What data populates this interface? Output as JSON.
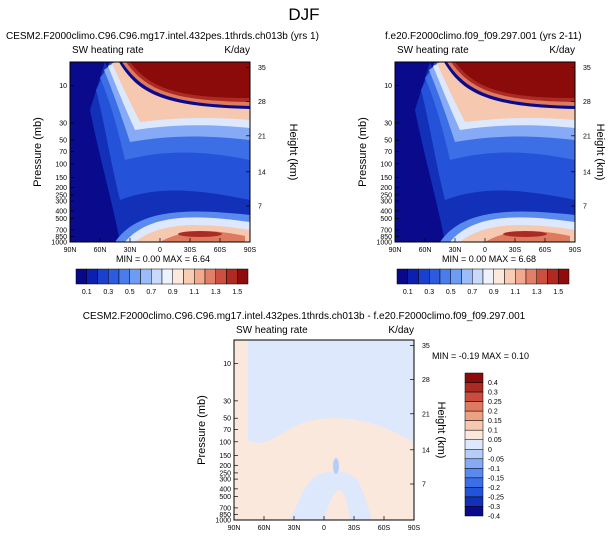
{
  "page": {
    "title": "DJF"
  },
  "colors": {
    "cbar1": [
      "#08088a",
      "#0b1fb0",
      "#1940cf",
      "#2d5be0",
      "#4b7cec",
      "#6f9cf3",
      "#9bbcf8",
      "#c8d9fb",
      "#eef2fd",
      "#fde9dc",
      "#f9cdb3",
      "#f2a98d",
      "#e27f68",
      "#cc4f3f",
      "#b02a22",
      "#8f0c0c"
    ],
    "cbar2": [
      "#0a0a8c",
      "#1230b8",
      "#2452d8",
      "#3c6ee6",
      "#5b8aef",
      "#86aaf5",
      "#b4cdf9",
      "#dde8fc",
      "#fbe8dc",
      "#f6c8b0",
      "#eda184",
      "#de7a60",
      "#c94c3d",
      "#ab2a23",
      "#8b0a0a"
    ]
  },
  "chart_data": [
    {
      "type": "heatmap",
      "name": "panel-1",
      "title": "CESM2.F2000climo.C96.C96.mg17.intel.432pes.1thrds.ch013b (yrs 1)",
      "left_label": "SW heating rate",
      "right_label": "K/day",
      "ylabel": "Pressure (mb)",
      "ylabel_right": "Height (km)",
      "x_ticks": [
        "90N",
        "60N",
        "30N",
        "0",
        "30S",
        "60S",
        "90S"
      ],
      "y_ticks": [
        "10",
        "30",
        "50",
        "70",
        "100",
        "150",
        "200",
        "250",
        "300",
        "400",
        "500",
        "700",
        "850",
        "1000"
      ],
      "y_ticks_right": [
        "35",
        "28",
        "21",
        "14",
        "7"
      ],
      "stats": "MIN =  0.00  MAX =  6.64",
      "colorbar_labels": [
        "0.1",
        "0.3",
        "0.5",
        "0.7",
        "0.9",
        "1.1",
        "1.3",
        "1.5"
      ]
    },
    {
      "type": "heatmap",
      "name": "panel-2",
      "title": "f.e20.F2000climo.f09_f09.297.001 (yrs 2-11)",
      "left_label": "SW heating rate",
      "right_label": "K/day",
      "ylabel": "Pressure (mb)",
      "ylabel_right": "Height (km)",
      "x_ticks": [
        "90N",
        "60N",
        "30N",
        "0",
        "30S",
        "60S",
        "90S"
      ],
      "y_ticks": [
        "10",
        "30",
        "50",
        "70",
        "100",
        "150",
        "200",
        "250",
        "300",
        "400",
        "500",
        "700",
        "850",
        "1000"
      ],
      "y_ticks_right": [
        "35",
        "28",
        "21",
        "14",
        "7"
      ],
      "stats": "MIN =  0.00  MAX =  6.68",
      "colorbar_labels": [
        "0.1",
        "0.3",
        "0.5",
        "0.7",
        "0.9",
        "1.1",
        "1.3",
        "1.5"
      ]
    },
    {
      "type": "heatmap",
      "name": "panel-diff",
      "title": "CESM2.F2000climo.C96.C96.mg17.intel.432pes.1thrds.ch013b - f.e20.F2000climo.f09_f09.297.001",
      "left_label": "SW heating rate",
      "right_label": "K/day",
      "ylabel": "Pressure (mb)",
      "ylabel_right": "Height (km)",
      "x_ticks": [
        "90N",
        "60N",
        "30N",
        "0",
        "30S",
        "60S",
        "90S"
      ],
      "y_ticks": [
        "10",
        "30",
        "50",
        "70",
        "100",
        "150",
        "200",
        "250",
        "300",
        "400",
        "500",
        "700",
        "850",
        "1000"
      ],
      "y_ticks_right": [
        "35",
        "28",
        "21",
        "14",
        "7"
      ],
      "stats": "MIN = -0.19  MAX =   0.10",
      "colorbar_labels": [
        "0.4",
        "0.3",
        "0.25",
        "0.2",
        "0.15",
        "0.1",
        "0.05",
        "0",
        "-0.05",
        "-0.1",
        "-0.15",
        "-0.2",
        "-0.25",
        "-0.3",
        "-0.4"
      ]
    }
  ]
}
